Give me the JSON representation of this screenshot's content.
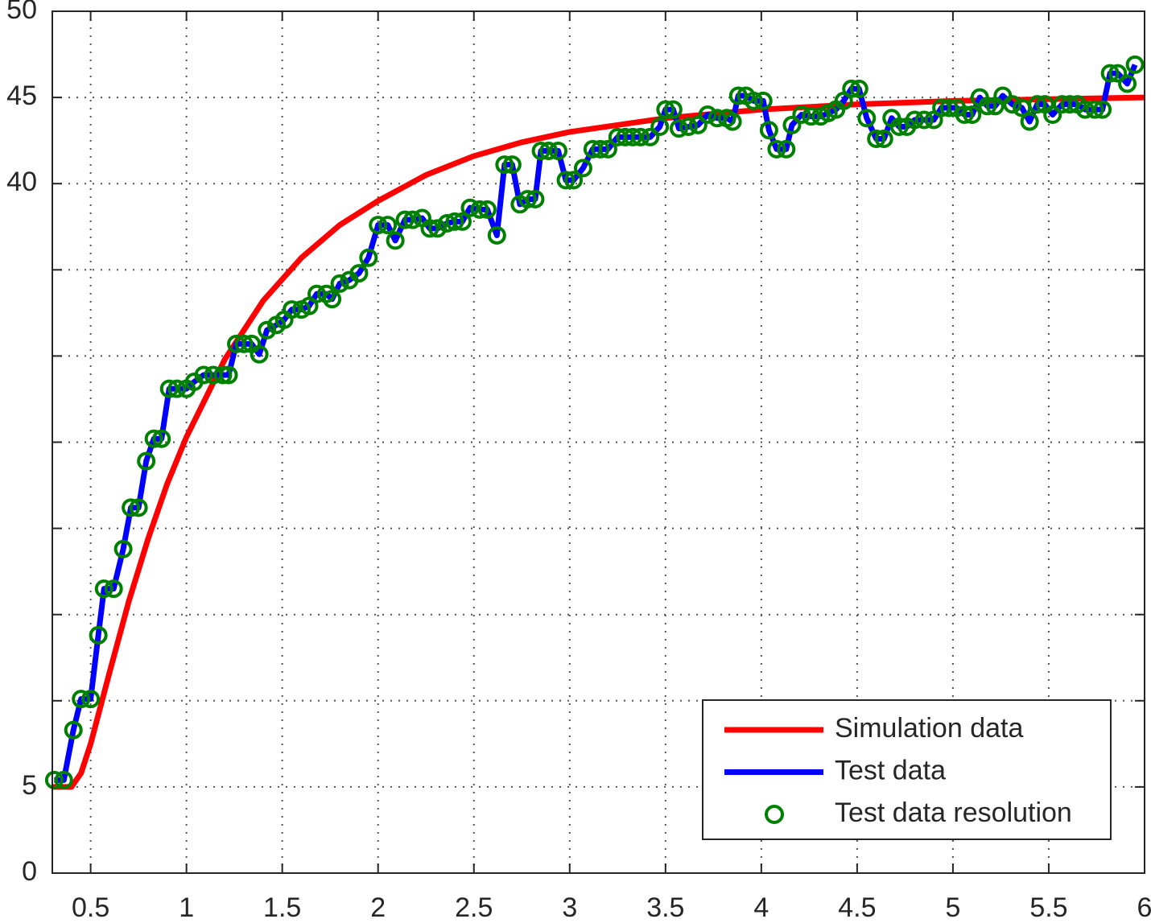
{
  "chart_data": {
    "type": "line",
    "xlim": [
      0.3,
      6
    ],
    "ylim": [
      0,
      50
    ],
    "xticks": [
      0.5,
      1,
      1.5,
      2,
      2.5,
      3,
      3.5,
      4,
      4.5,
      5,
      5.5,
      6
    ],
    "yticks": [
      0,
      5,
      40,
      45,
      50
    ],
    "ygrid": [
      0,
      5,
      10,
      15,
      20,
      25,
      30,
      35,
      40,
      45,
      50
    ],
    "grid": true,
    "legend": "lower right",
    "series": [
      {
        "name": "Simulation data",
        "color": "#ff0000",
        "style": "line",
        "x": [
          0.3,
          0.35,
          0.4,
          0.45,
          0.5,
          0.6,
          0.7,
          0.8,
          0.9,
          1.0,
          1.2,
          1.4,
          1.6,
          1.8,
          2.0,
          2.25,
          2.5,
          2.75,
          3.0,
          3.5,
          4.0,
          4.5,
          5.0,
          5.5,
          6.0
        ],
        "values": [
          5,
          5,
          5,
          5.8,
          7.5,
          11.7,
          15.8,
          19.4,
          22.6,
          25.3,
          29.8,
          33.2,
          35.7,
          37.6,
          39.0,
          40.5,
          41.6,
          42.4,
          43.0,
          43.8,
          44.3,
          44.6,
          44.8,
          44.9,
          45.0
        ]
      },
      {
        "name": "Test data",
        "color": "#0000ff",
        "style": "line",
        "x": [
          0.31,
          0.36,
          0.41,
          0.45,
          0.5,
          0.54,
          0.57,
          0.62,
          0.67,
          0.71,
          0.75,
          0.79,
          0.83,
          0.87,
          0.91,
          0.95,
          1.0,
          1.04,
          1.09,
          1.14,
          1.19,
          1.22,
          1.26,
          1.3,
          1.34,
          1.38,
          1.42,
          1.47,
          1.51,
          1.55,
          1.6,
          1.64,
          1.68,
          1.73,
          1.76,
          1.8,
          1.85,
          1.9,
          1.95,
          2.0,
          2.05,
          2.09,
          2.14,
          2.18,
          2.23,
          2.27,
          2.31,
          2.36,
          2.4,
          2.44,
          2.48,
          2.53,
          2.57,
          2.62,
          2.66,
          2.7,
          2.74,
          2.78,
          2.82,
          2.85,
          2.89,
          2.94,
          2.98,
          3.02,
          3.07,
          3.12,
          3.16,
          3.2,
          3.25,
          3.29,
          3.33,
          3.37,
          3.42,
          3.47,
          3.5,
          3.54,
          3.57,
          3.62,
          3.67,
          3.72,
          3.77,
          3.82,
          3.85,
          3.88,
          3.92,
          3.96,
          4.01,
          4.04,
          4.08,
          4.13,
          4.16,
          4.21,
          4.26,
          4.31,
          4.35,
          4.39,
          4.43,
          4.47,
          4.51,
          4.55,
          4.6,
          4.64,
          4.68,
          4.72,
          4.76,
          4.8,
          4.85,
          4.9,
          4.94,
          4.98,
          5.02,
          5.06,
          5.1,
          5.14,
          5.18,
          5.22,
          5.26,
          5.31,
          5.36,
          5.4,
          5.44,
          5.48,
          5.52,
          5.57,
          5.61,
          5.65,
          5.69,
          5.74,
          5.78,
          5.82,
          5.86,
          5.91,
          5.95
        ],
        "values": [
          5.4,
          5.4,
          8.3,
          10.1,
          10.1,
          13.8,
          16.5,
          16.5,
          18.8,
          21.2,
          21.2,
          23.9,
          25.2,
          25.2,
          28.1,
          28.1,
          28.1,
          28.5,
          28.9,
          28.9,
          28.9,
          28.9,
          30.7,
          30.7,
          30.7,
          30.1,
          31.5,
          31.8,
          32.1,
          32.7,
          32.7,
          32.9,
          33.6,
          33.6,
          33.3,
          34.2,
          34.4,
          34.8,
          35.7,
          37.6,
          37.6,
          36.7,
          37.9,
          37.9,
          38.0,
          37.4,
          37.4,
          37.7,
          37.8,
          37.8,
          38.6,
          38.5,
          38.5,
          37.0,
          41.1,
          41.1,
          38.8,
          39.1,
          39.1,
          41.9,
          41.9,
          41.9,
          40.2,
          40.2,
          40.9,
          42.0,
          42.0,
          42.0,
          42.7,
          42.7,
          42.7,
          42.7,
          42.7,
          43.3,
          44.3,
          44.3,
          43.2,
          43.3,
          43.4,
          44.0,
          43.8,
          43.8,
          43.6,
          45.1,
          45.1,
          44.8,
          44.8,
          43.1,
          42.0,
          42.0,
          43.4,
          44.0,
          43.9,
          43.9,
          44.1,
          44.3,
          44.8,
          45.5,
          45.5,
          43.8,
          42.6,
          42.6,
          43.8,
          43.3,
          43.3,
          43.7,
          43.7,
          43.7,
          44.4,
          44.4,
          44.4,
          44.0,
          44.0,
          45.0,
          44.5,
          44.5,
          45.1,
          44.6,
          44.4,
          43.6,
          44.6,
          44.6,
          44.0,
          44.6,
          44.6,
          44.6,
          44.3,
          44.3,
          44.3,
          46.4,
          46.4,
          45.8,
          46.9
        ]
      },
      {
        "name": "Test data resolution",
        "color": "#008000",
        "style": "markers",
        "x": [
          0.31,
          0.36,
          0.41,
          0.45,
          0.5,
          0.54,
          0.57,
          0.62,
          0.67,
          0.71,
          0.75,
          0.79,
          0.83,
          0.87,
          0.91,
          0.95,
          1.0,
          1.04,
          1.09,
          1.14,
          1.19,
          1.22,
          1.26,
          1.3,
          1.34,
          1.38,
          1.42,
          1.47,
          1.51,
          1.55,
          1.6,
          1.64,
          1.68,
          1.73,
          1.76,
          1.8,
          1.85,
          1.9,
          1.95,
          2.0,
          2.05,
          2.09,
          2.14,
          2.18,
          2.23,
          2.27,
          2.31,
          2.36,
          2.4,
          2.44,
          2.48,
          2.53,
          2.57,
          2.62,
          2.66,
          2.7,
          2.74,
          2.78,
          2.82,
          2.85,
          2.89,
          2.94,
          2.98,
          3.02,
          3.07,
          3.12,
          3.16,
          3.2,
          3.25,
          3.29,
          3.33,
          3.37,
          3.42,
          3.47,
          3.5,
          3.54,
          3.57,
          3.62,
          3.67,
          3.72,
          3.77,
          3.82,
          3.85,
          3.88,
          3.92,
          3.96,
          4.01,
          4.04,
          4.08,
          4.13,
          4.16,
          4.21,
          4.26,
          4.31,
          4.35,
          4.39,
          4.43,
          4.47,
          4.51,
          4.55,
          4.6,
          4.64,
          4.68,
          4.72,
          4.76,
          4.8,
          4.85,
          4.9,
          4.94,
          4.98,
          5.02,
          5.06,
          5.1,
          5.14,
          5.18,
          5.22,
          5.26,
          5.31,
          5.36,
          5.4,
          5.44,
          5.48,
          5.52,
          5.57,
          5.61,
          5.65,
          5.69,
          5.74,
          5.78,
          5.82,
          5.86,
          5.91,
          5.95
        ],
        "values": [
          5.4,
          5.4,
          8.3,
          10.1,
          10.1,
          13.8,
          16.5,
          16.5,
          18.8,
          21.2,
          21.2,
          23.9,
          25.2,
          25.2,
          28.1,
          28.1,
          28.1,
          28.5,
          28.9,
          28.9,
          28.9,
          28.9,
          30.7,
          30.7,
          30.7,
          30.1,
          31.5,
          31.8,
          32.1,
          32.7,
          32.7,
          32.9,
          33.6,
          33.6,
          33.3,
          34.2,
          34.4,
          34.8,
          35.7,
          37.6,
          37.6,
          36.7,
          37.9,
          37.9,
          38.0,
          37.4,
          37.4,
          37.7,
          37.8,
          37.8,
          38.6,
          38.5,
          38.5,
          37.0,
          41.1,
          41.1,
          38.8,
          39.1,
          39.1,
          41.9,
          41.9,
          41.9,
          40.2,
          40.2,
          40.9,
          42.0,
          42.0,
          42.0,
          42.7,
          42.7,
          42.7,
          42.7,
          42.7,
          43.3,
          44.3,
          44.3,
          43.2,
          43.3,
          43.4,
          44.0,
          43.8,
          43.8,
          43.6,
          45.1,
          45.1,
          44.8,
          44.8,
          43.1,
          42.0,
          42.0,
          43.4,
          44.0,
          43.9,
          43.9,
          44.1,
          44.3,
          44.8,
          45.5,
          45.5,
          43.8,
          42.6,
          42.6,
          43.8,
          43.3,
          43.3,
          43.7,
          43.7,
          43.7,
          44.4,
          44.4,
          44.4,
          44.0,
          44.0,
          45.0,
          44.5,
          44.5,
          45.1,
          44.6,
          44.4,
          43.6,
          44.6,
          44.6,
          44.0,
          44.6,
          44.6,
          44.6,
          44.3,
          44.3,
          44.3,
          46.4,
          46.4,
          45.8,
          46.9
        ]
      }
    ]
  }
}
